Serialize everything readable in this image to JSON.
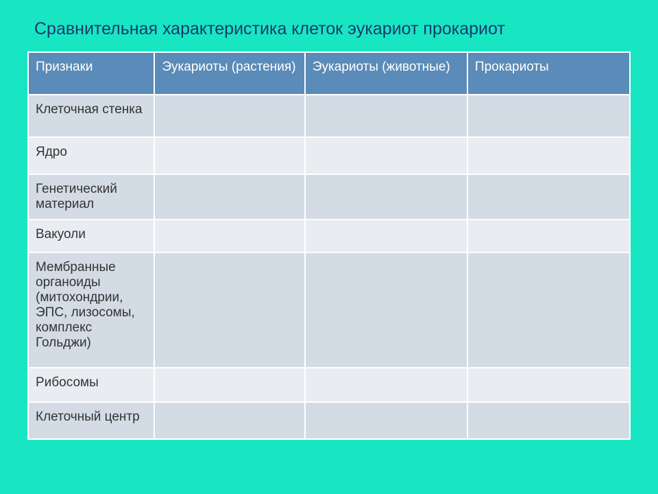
{
  "title": "Сравнительная характеристика  клеток  эукариот прокариот",
  "table": {
    "type": "table",
    "background_color": "#18e6c3",
    "title_color": "#1a3a6e",
    "title_fontsize": 25,
    "header_bg": "#5b8bb8",
    "header_text_color": "#ffffff",
    "row_odd_bg": "#d3dce5",
    "row_even_bg": "#e9edf2",
    "border_color": "#ffffff",
    "cell_fontsize": 19,
    "columns": [
      {
        "label": "Признаки",
        "width_pct": 21
      },
      {
        "label": "Эукариоты (растения)",
        "width_pct": 25
      },
      {
        "label": "Эукариоты (животные)",
        "width_pct": 27
      },
      {
        "label": "Прокариоты",
        "width_pct": 27
      }
    ],
    "rows": [
      {
        "label": "Клеточная стенка",
        "cells": [
          "",
          "",
          ""
        ]
      },
      {
        "label": "Ядро",
        "cells": [
          "",
          "",
          ""
        ]
      },
      {
        "label": "Генетический материал",
        "cells": [
          "",
          "",
          ""
        ]
      },
      {
        "label": "Вакуоли",
        "cells": [
          "",
          "",
          ""
        ]
      },
      {
        "label": "Мембранные органоиды (митохондрии, ЭПС, лизосомы, комплекс Гольджи)",
        "cells": [
          "",
          "",
          ""
        ]
      },
      {
        "label": "Рибосомы",
        "cells": [
          "",
          "",
          ""
        ]
      },
      {
        "label": "Клеточный центр",
        "cells": [
          "",
          "",
          ""
        ]
      }
    ]
  }
}
